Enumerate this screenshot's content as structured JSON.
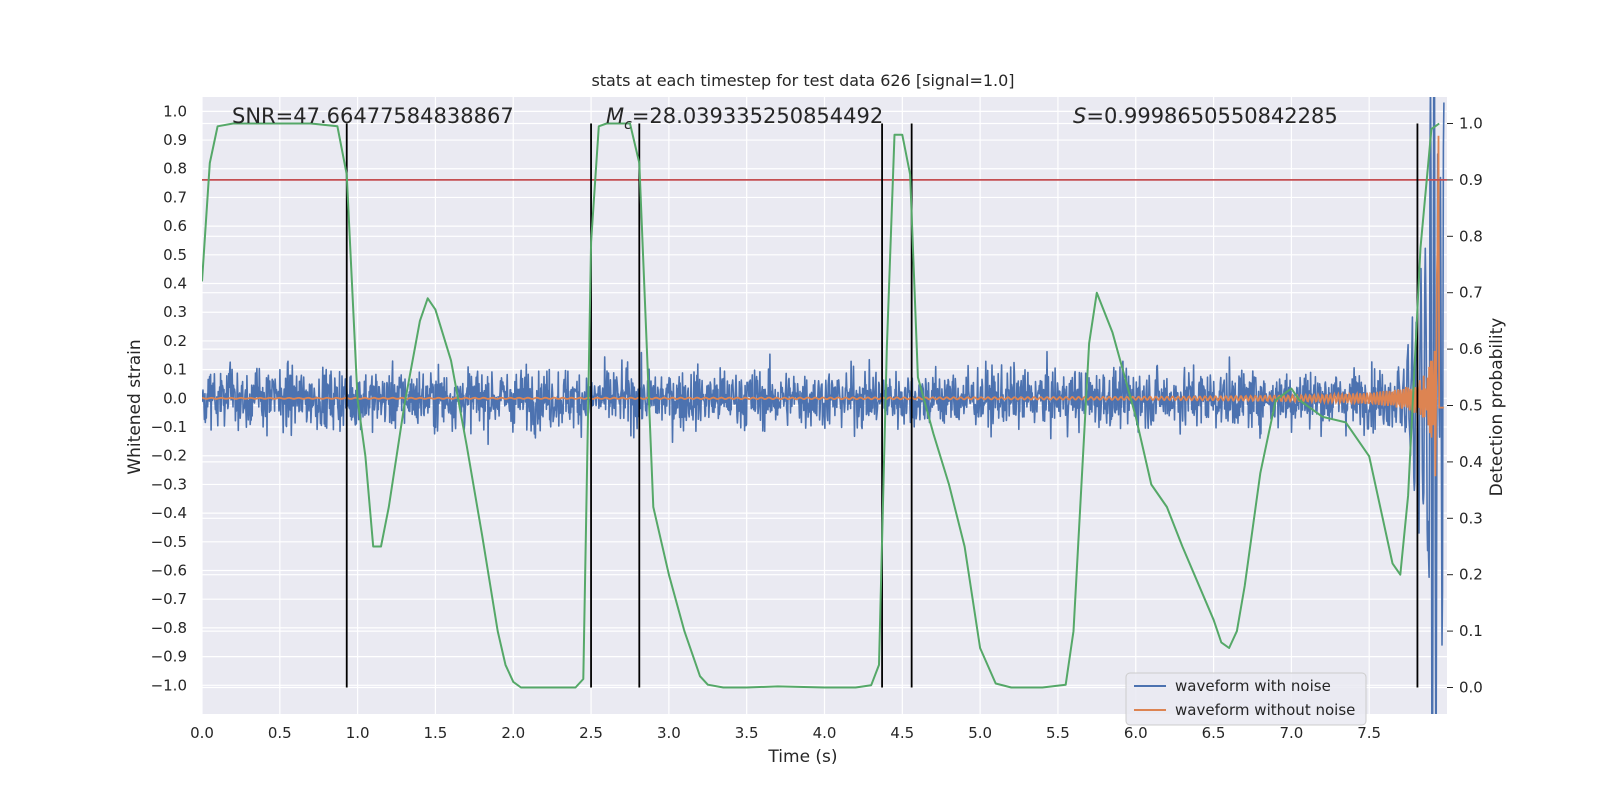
{
  "chart_data": {
    "type": "line",
    "title": "stats at each timestep for test data 626 [signal=1.0]",
    "xlabel": "Time (s)",
    "ylabel": "Whitened strain",
    "y2label": "Detection probability",
    "xlim": [
      0.0,
      8.0
    ],
    "ylim": [
      -1.1,
      1.05
    ],
    "y2lim": [
      -0.047,
      1.047
    ],
    "xticks": [
      0.0,
      0.5,
      1.0,
      1.5,
      2.0,
      2.5,
      3.0,
      3.5,
      4.0,
      4.5,
      5.0,
      5.5,
      6.0,
      6.5,
      7.0,
      7.5
    ],
    "xtick_labels": [
      "0.0",
      "0.5",
      "1.0",
      "1.5",
      "2.0",
      "2.5",
      "3.0",
      "3.5",
      "4.0",
      "4.5",
      "5.0",
      "5.5",
      "6.0",
      "6.5",
      "7.0",
      "7.5"
    ],
    "yticks": [
      1.0,
      0.9,
      0.8,
      0.7,
      0.6,
      0.5,
      0.4,
      0.3,
      0.2,
      0.1,
      0.0,
      -0.1,
      -0.2,
      -0.3,
      -0.4,
      -0.5,
      -0.6,
      -0.7,
      -0.8,
      -0.9,
      -1.0
    ],
    "ytick_labels": [
      "1.0",
      "0.9",
      "0.8",
      "0.7",
      "0.6",
      "0.5",
      "0.4",
      "0.3",
      "0.2",
      "0.1",
      "0.0",
      "−0.1",
      "−0.2",
      "−0.3",
      "−0.4",
      "−0.5",
      "−0.6",
      "−0.7",
      "−0.8",
      "−0.9",
      "−1.0"
    ],
    "y2ticks": [
      1.0,
      0.9,
      0.8,
      0.7,
      0.6,
      0.5,
      0.4,
      0.3,
      0.2,
      0.1,
      0.0
    ],
    "y2tick_labels": [
      "1.0",
      "0.9",
      "0.8",
      "0.7",
      "0.6",
      "0.5",
      "0.4",
      "0.3",
      "0.2",
      "0.1",
      "0.0"
    ],
    "annotations": {
      "snr": "SNR=47.66477584838867",
      "mc_symbol": "M",
      "mc_sub": "c",
      "mc_value": "=28.039335250854492",
      "s_symbol": "S",
      "s_value": "=0.9998650550842285"
    },
    "threshold": 0.9,
    "vlines": [
      0.93,
      2.5,
      2.81,
      4.37,
      4.56,
      7.81
    ],
    "series": [
      {
        "name": "waveform with noise",
        "color": "#4c72b0",
        "noise_amplitude": 0.1,
        "noise_peak": 0.28
      },
      {
        "name": "waveform without noise",
        "color": "#dd8452",
        "chirp_end_time": 7.95,
        "chirp_peak": 0.92
      },
      {
        "name": "detection probability",
        "color": "#55a868",
        "x": [
          0.0,
          0.05,
          0.1,
          0.2,
          0.3,
          0.5,
          0.7,
          0.87,
          0.93,
          1.0,
          1.05,
          1.1,
          1.15,
          1.2,
          1.3,
          1.4,
          1.45,
          1.5,
          1.6,
          1.7,
          1.8,
          1.9,
          1.95,
          2.0,
          2.05,
          2.2,
          2.4,
          2.45,
          2.5,
          2.55,
          2.6,
          2.75,
          2.81,
          2.9,
          3.0,
          3.1,
          3.2,
          3.25,
          3.35,
          3.5,
          3.7,
          4.0,
          4.2,
          4.3,
          4.35,
          4.4,
          4.45,
          4.5,
          4.55,
          4.6,
          4.7,
          4.8,
          4.9,
          5.0,
          5.1,
          5.2,
          5.4,
          5.55,
          5.6,
          5.7,
          5.75,
          5.85,
          6.0,
          6.1,
          6.2,
          6.3,
          6.5,
          6.55,
          6.6,
          6.65,
          6.7,
          6.8,
          6.9,
          7.0,
          7.05,
          7.2,
          7.35,
          7.5,
          7.65,
          7.7,
          7.75,
          7.83,
          7.9,
          7.95
        ],
        "y": [
          0.72,
          0.93,
          0.995,
          1.0,
          1.0,
          1.0,
          1.0,
          0.995,
          0.91,
          0.51,
          0.41,
          0.25,
          0.25,
          0.32,
          0.5,
          0.65,
          0.69,
          0.67,
          0.58,
          0.43,
          0.27,
          0.1,
          0.04,
          0.01,
          0.0,
          0.0,
          0.0,
          0.015,
          0.79,
          0.995,
          1.0,
          1.0,
          0.93,
          0.32,
          0.2,
          0.1,
          0.02,
          0.005,
          0.0,
          0.0,
          0.002,
          0.0,
          0.0,
          0.004,
          0.04,
          0.6,
          0.98,
          0.98,
          0.91,
          0.55,
          0.45,
          0.36,
          0.25,
          0.07,
          0.007,
          0.0,
          0.0,
          0.005,
          0.1,
          0.61,
          0.7,
          0.63,
          0.48,
          0.36,
          0.32,
          0.25,
          0.12,
          0.08,
          0.07,
          0.1,
          0.18,
          0.38,
          0.51,
          0.53,
          0.51,
          0.48,
          0.47,
          0.41,
          0.22,
          0.2,
          0.34,
          0.78,
          0.99,
          1.0
        ]
      }
    ],
    "legend": {
      "location": "lower-right",
      "entries": [
        "waveform with noise",
        "waveform without noise"
      ]
    },
    "grid": true,
    "colors": {
      "background": "#eaeaf2",
      "grid": "#ffffff",
      "threshold": "#c44e52",
      "vline": "#000000"
    }
  }
}
